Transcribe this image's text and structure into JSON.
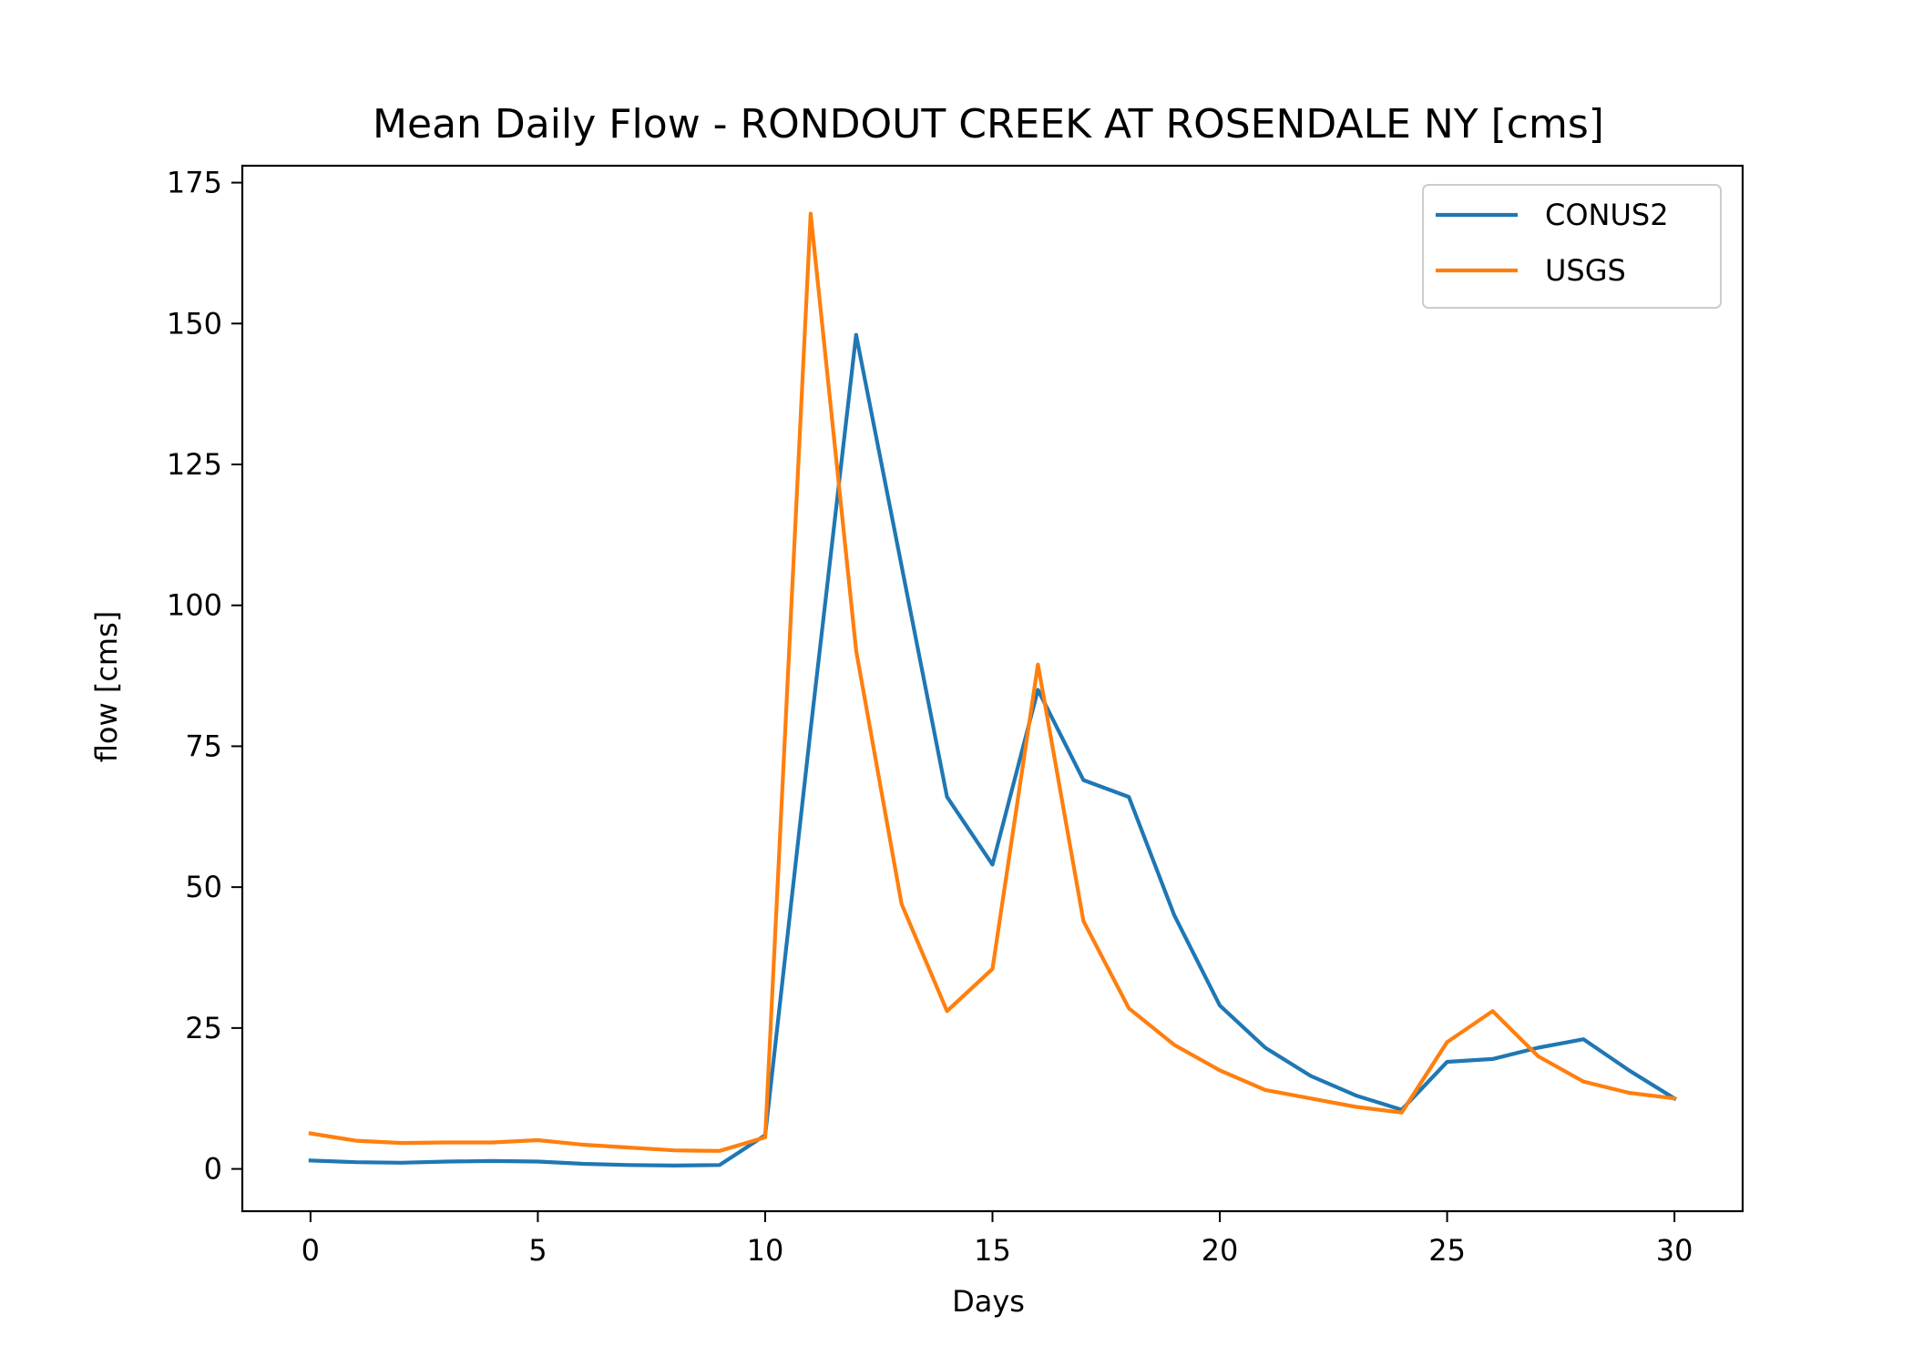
{
  "chart_data": {
    "type": "line",
    "title": "Mean Daily Flow - RONDOUT CREEK AT ROSENDALE NY [cms]",
    "xlabel": "Days",
    "ylabel": "flow [cms]",
    "xlim": [
      -1.5,
      31.5
    ],
    "ylim": [
      -7.5,
      178
    ],
    "xticks": [
      0,
      5,
      10,
      15,
      20,
      25,
      30
    ],
    "yticks": [
      0,
      25,
      50,
      75,
      100,
      125,
      150,
      175
    ],
    "grid": false,
    "legend_position": "top-right",
    "x": [
      0,
      1,
      2,
      3,
      4,
      5,
      6,
      7,
      8,
      9,
      10,
      11,
      12,
      13,
      14,
      15,
      16,
      17,
      18,
      19,
      20,
      21,
      22,
      23,
      24,
      25,
      26,
      27,
      28,
      29,
      30
    ],
    "series": [
      {
        "name": "CONUS2",
        "color": "#1f77b4",
        "values": [
          1.5,
          1.2,
          1.1,
          1.3,
          1.4,
          1.3,
          0.9,
          0.7,
          0.6,
          0.7,
          6,
          78,
          148,
          107,
          66,
          54,
          85,
          69,
          66,
          45,
          29,
          21.5,
          16.5,
          13,
          10.5,
          19,
          19.5,
          21.5,
          23,
          17.5,
          12.5
        ]
      },
      {
        "name": "USGS",
        "color": "#ff7f0e",
        "values": [
          6.3,
          5,
          4.6,
          4.7,
          4.7,
          5.1,
          4.3,
          3.8,
          3.3,
          3.2,
          5.6,
          169.5,
          92,
          47,
          28,
          35.5,
          89.5,
          44,
          28.5,
          22,
          17.5,
          14,
          12.5,
          11,
          10,
          22.5,
          28,
          20,
          15.5,
          13.5,
          12.5
        ]
      }
    ]
  }
}
